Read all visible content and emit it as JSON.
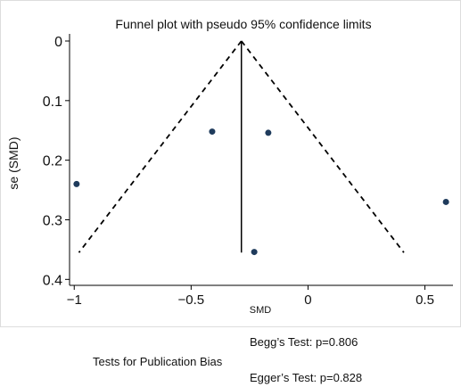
{
  "chart_data": {
    "type": "scatter",
    "title": "Funnel plot with pseudo 95% confidence limits",
    "xlabel": "SMD",
    "ylabel": "se (SMD)",
    "xlim": [
      -1.02,
      0.62
    ],
    "ylim": [
      0,
      0.41
    ],
    "y_inverted": true,
    "x_ticks": [
      -1,
      -0.5,
      0,
      0.5
    ],
    "x_tick_labels": [
      "−1",
      "−0.5",
      "0",
      "0.5"
    ],
    "y_ticks": [
      0,
      0.1,
      0.2,
      0.3,
      0.4
    ],
    "y_tick_labels": [
      "0",
      "0.1",
      "0.2",
      "0.3",
      "0.4"
    ],
    "grid": false,
    "series": [
      {
        "marker": "circle",
        "color": "#1f3b5c",
        "points": [
          {
            "x": -0.99,
            "y": 0.24
          },
          {
            "x": -0.41,
            "y": 0.152
          },
          {
            "x": -0.17,
            "y": 0.154
          },
          {
            "x": -0.23,
            "y": 0.354
          },
          {
            "x": 0.59,
            "y": 0.27
          }
        ]
      }
    ],
    "pooled_estimate": -0.285,
    "pooled_line_y_range": [
      0,
      0.355
    ],
    "funnel_limits": {
      "style": "dashed",
      "apex": {
        "x": -0.285,
        "y": 0
      },
      "left_end": {
        "x": -0.98,
        "y": 0.355
      },
      "right_end": {
        "x": 0.41,
        "y": 0.355
      }
    },
    "colors": {
      "points": "#1f3b5c",
      "lines": "#000000",
      "frame": "#000000",
      "outer_border": "#dddddd"
    }
  },
  "footer": {
    "bias_label": "Tests for Publication Bias",
    "begg": "Begg’s Test: p=0.806",
    "egger": "Egger’s Test: p=0.828"
  }
}
